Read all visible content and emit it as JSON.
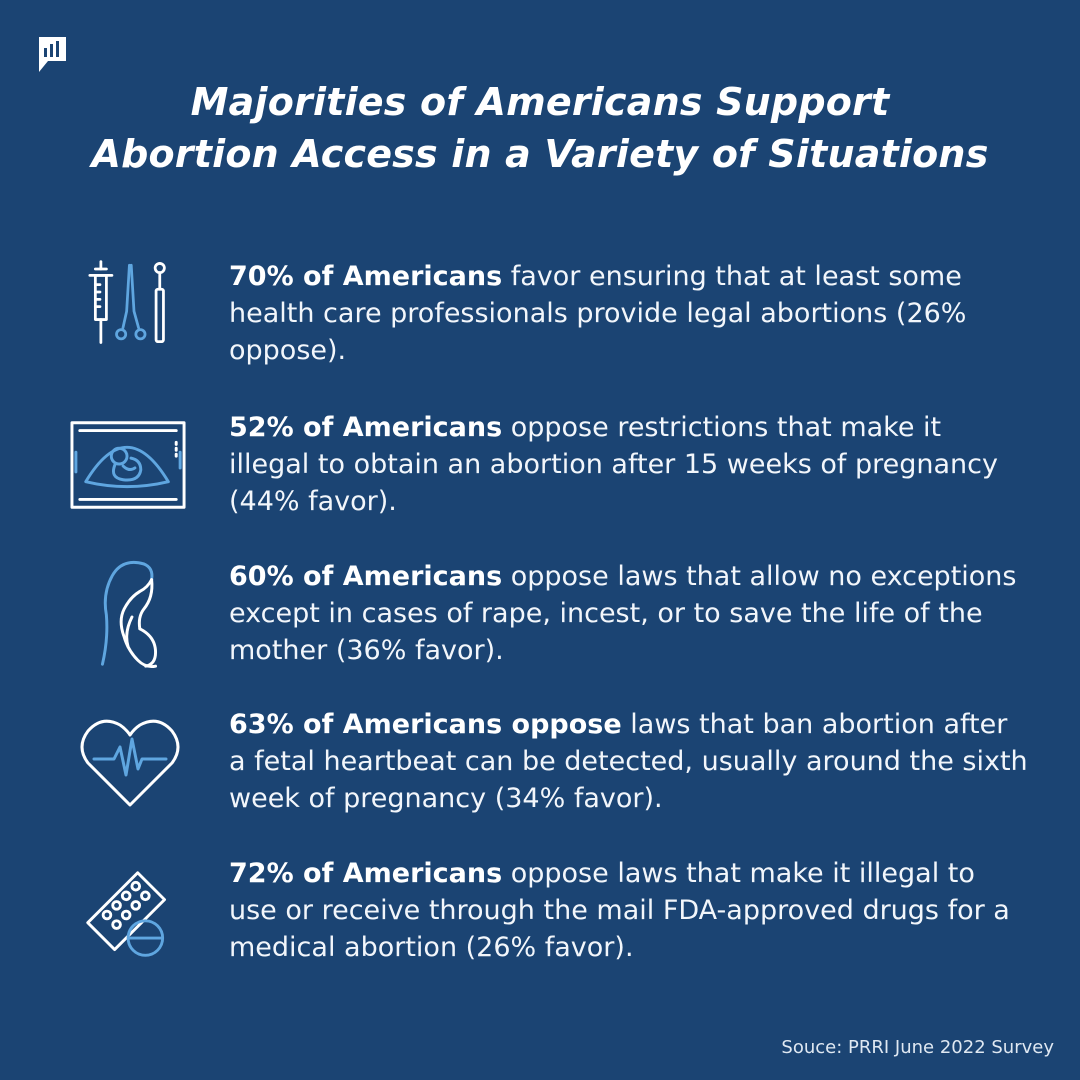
{
  "title": {
    "line1": "Majorities of Americans Support",
    "line2": "Abortion Access in a Variety of Situations"
  },
  "items": [
    {
      "icon": "medical-tools-icon",
      "bold": "70% of Americans",
      "rest": " favor ensuring that at least some health care professionals  provide legal abortions (26% oppose)."
    },
    {
      "icon": "ultrasound-icon",
      "bold": "52% of Americans",
      "rest": " oppose restrictions that make it illegal to obtain an abortion after 15 weeks of pregnancy (44% favor)."
    },
    {
      "icon": "pregnant-woman-icon",
      "bold": "60% of Americans",
      "rest": " oppose laws that allow no exceptions except in cases of rape, incest, or to save the life of the mother (36% favor)."
    },
    {
      "icon": "heartbeat-icon",
      "bold": "63% of Americans oppose",
      "rest": " laws that ban abortion after a fetal heartbeat can be detected, usually around the sixth week of pregnancy (34% favor)."
    },
    {
      "icon": "pills-icon",
      "bold": "72% of Americans",
      "rest": " oppose laws that make it illegal to use or receive through the mail FDA-approved drugs for a medical abortion (26% favor)."
    }
  ],
  "source": "Souce: PRRI June 2022 Survey",
  "colors": {
    "background": "#1b4473",
    "text": "#ffffff",
    "icon_accent": "#5fa6e0"
  }
}
